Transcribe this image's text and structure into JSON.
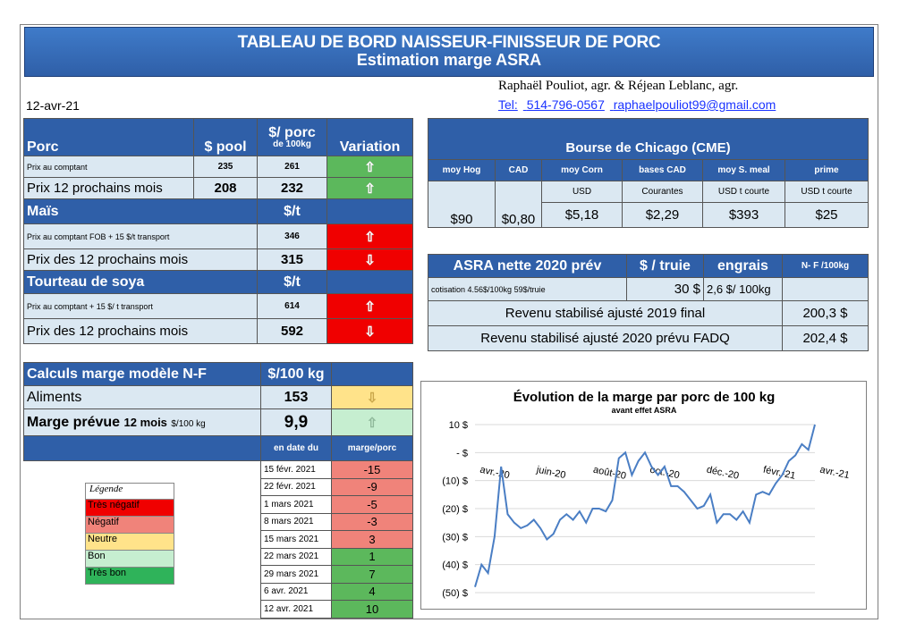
{
  "header": {
    "title": "TABLEAU DE BORD NAISSEUR-FINISSEUR DE PORC",
    "subtitle": "Estimation marge ASRA"
  },
  "date": "12-avr-21",
  "authors": "Raphaël Pouliot, agr.   &   Réjean Leblanc, agr.",
  "contact": {
    "tel_label": "Tel:",
    "tel": "514-796-0567",
    "email": "raphaelpouliot99@gmail.com"
  },
  "porc": {
    "title": "Porc",
    "col_pool": "$ pool",
    "col_porc": "$/ porc",
    "col_porc_sub": "de 100kg",
    "col_var": "Variation",
    "rows": [
      {
        "label": "Prix au comptant",
        "pool": "235",
        "porc": "261",
        "arrow": "⇧"
      },
      {
        "label": "Prix 12 prochains mois",
        "pool": "208",
        "porc": "232",
        "arrow": "⇧"
      }
    ]
  },
  "mais": {
    "title": "Maïs",
    "unit": "$/t",
    "rows": [
      {
        "label": "Prix au comptant  FOB + 15 $/t transport",
        "value": "346",
        "arrow": "⇧"
      },
      {
        "label": "Prix des 12 prochains mois",
        "value": "315",
        "arrow": "⇩"
      }
    ]
  },
  "soya": {
    "title": "Tourteau de soya",
    "unit": "$/t",
    "rows": [
      {
        "label": "Prix au comptant  + 15 $/ t  transport",
        "value": "614",
        "arrow": "⇧"
      },
      {
        "label": "Prix des 12 prochains mois",
        "value": "592",
        "arrow": "⇩"
      }
    ]
  },
  "cme": {
    "title": "Bourse de Chicago (CME)",
    "headers": [
      "moy Hog",
      "CAD",
      "moy Corn",
      "bases CAD",
      "moy S. meal",
      "prime"
    ],
    "subs": [
      "",
      "",
      "USD",
      "Courantes",
      "USD t courte",
      "USD t courte"
    ],
    "values": [
      "$90",
      "$0,80",
      "$5,18",
      "$2,29",
      "$393",
      "$25"
    ]
  },
  "asra": {
    "title": "ASRA nette 2020 prév",
    "col_truie": "$ / truie",
    "col_engrais": "engrais",
    "col_nf": "N- F /100kg",
    "cotisation_label": "cotisation 4.56$/100kg   59$/truie",
    "truie_value": "30  $",
    "engrais_value": "2,6  $/ 100kg",
    "rev2019_label": "Revenu stabilisé ajusté 2019 final",
    "rev2019_value": "200,3 $",
    "rev2020_label": "Revenu stabilisé ajusté 2020 prévu FADQ",
    "rev2020_value": "202,4 $"
  },
  "calc": {
    "title": "Calculs marge  modèle N-F",
    "unit": "$/100 kg",
    "aliments_label": "Aliments",
    "aliments_value": "153",
    "aliments_arrow": "⇩",
    "marge_label": "Marge prévue",
    "marge_label2": "12 mois",
    "marge_unit": "$/100 kg",
    "marge_value": "9,9",
    "marge_arrow": "⇧",
    "col_date": "en date du",
    "col_marge": "marge/porc",
    "history": [
      {
        "date": "15 févr. 2021",
        "value": "-15",
        "color": "#f0837a"
      },
      {
        "date": "22 févr. 2021",
        "value": "-9",
        "color": "#f0837a"
      },
      {
        "date": "1 mars 2021",
        "value": "-5",
        "color": "#f0837a"
      },
      {
        "date": "8 mars 2021",
        "value": "-3",
        "color": "#f0837a"
      },
      {
        "date": "15 mars 2021",
        "value": "3",
        "color": "#f0837a"
      },
      {
        "date": "22 mars 2021",
        "value": "1",
        "color": "#5cb85c"
      },
      {
        "date": "29 mars 2021",
        "value": "7",
        "color": "#5cb85c"
      },
      {
        "date": "6 avr. 2021",
        "value": "4",
        "color": "#5cb85c"
      },
      {
        "date": "12 avr. 2021",
        "value": "10",
        "color": "#5cb85c"
      }
    ]
  },
  "legend": {
    "title": "Légende",
    "items": [
      {
        "label": "Très négatif",
        "color": "#f00000"
      },
      {
        "label": "Négatif",
        "color": "#f0837a"
      },
      {
        "label": "Neutre",
        "color": "#ffe38a"
      },
      {
        "label": "Bon",
        "color": "#c6eed0"
      },
      {
        "label": "Très bon",
        "color": "#2fb35a"
      }
    ]
  },
  "chart_data": {
    "type": "line",
    "title": "Évolution de la marge par porc de 100 kg",
    "subtitle": "avant effet ASRA",
    "ylim": [
      -50,
      10
    ],
    "yticks": [
      "10 $",
      "- $",
      "(10) $",
      "(20) $",
      "(30) $",
      "(40) $",
      "(50) $"
    ],
    "xticks": [
      "avr.-20",
      "juin-20",
      "août-20",
      "oct.-20",
      "déc.-20",
      "févr.-21",
      "avr.-21"
    ],
    "x": [
      0,
      1,
      2,
      3,
      4,
      5,
      6,
      7,
      8,
      9,
      10,
      11,
      12,
      13,
      14,
      15,
      16,
      17,
      18,
      19,
      20,
      21,
      22,
      23,
      24,
      25,
      26,
      27,
      28,
      29,
      30,
      31,
      32,
      33,
      34,
      35,
      36,
      37,
      38,
      39,
      40,
      41,
      42,
      43,
      44,
      45,
      46,
      47,
      48,
      49,
      50,
      51,
      52
    ],
    "series": [
      {
        "values": [
          -48,
          -40,
          -43,
          -30,
          -5,
          -22,
          -25,
          -27,
          -26,
          -24,
          -27,
          -31,
          -29,
          -24,
          -22,
          -24,
          -21,
          -25,
          -20,
          -20,
          -21,
          -17,
          -2,
          0,
          -8,
          -3,
          0,
          -5,
          -8,
          -5,
          -12,
          -12,
          -14,
          -17,
          -20,
          -19,
          -15,
          -25,
          -22,
          -22,
          -24,
          -21,
          -25,
          -15,
          -14,
          -15,
          -11,
          -8,
          -3,
          -1,
          3,
          1,
          10
        ]
      }
    ]
  }
}
